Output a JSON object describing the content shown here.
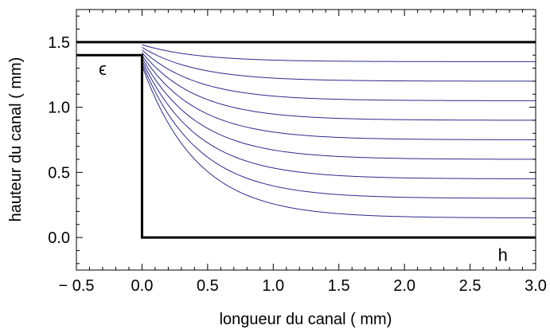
{
  "chart_data": {
    "type": "line",
    "xlabel": "longueur du canal ( mm)",
    "ylabel": "hauteur du canal ( mm)",
    "xlim": [
      -0.5,
      3.0
    ],
    "ylim": [
      -0.25,
      1.75
    ],
    "xticks": [
      {
        "value": -0.5,
        "label": "− 0.5"
      },
      {
        "value": 0.0,
        "label": "0.0"
      },
      {
        "value": 0.5,
        "label": "0.5"
      },
      {
        "value": 1.0,
        "label": "1.0"
      },
      {
        "value": 1.5,
        "label": "1.5"
      },
      {
        "value": 2.0,
        "label": "2.0"
      },
      {
        "value": 2.5,
        "label": "2.5"
      },
      {
        "value": 3.0,
        "label": "3.0"
      }
    ],
    "yticks": [
      {
        "value": 0.0,
        "label": "0.0"
      },
      {
        "value": 0.5,
        "label": "0.5"
      },
      {
        "value": 1.0,
        "label": "1.0"
      },
      {
        "value": 1.5,
        "label": "1.5"
      }
    ],
    "grid": false,
    "annotations": [
      {
        "text": "ϵ",
        "x": -0.3,
        "y": 1.25
      },
      {
        "text": "h",
        "x": 2.75,
        "y": -0.18
      }
    ],
    "boundaries": {
      "color": "#000000",
      "lines": [
        {
          "name": "top-wall",
          "points": [
            [
              -0.5,
              1.5
            ],
            [
              3.0,
              1.5
            ]
          ]
        },
        {
          "name": "step-wall",
          "points": [
            [
              -0.5,
              1.4
            ],
            [
              0.0,
              1.4
            ],
            [
              0.0,
              0.0
            ],
            [
              3.0,
              0.0
            ]
          ]
        }
      ]
    },
    "streamlines": {
      "color": "#2b2b8c",
      "x_start": 0.0,
      "x_end": 3.0,
      "series": [
        {
          "y_start": 1.48,
          "y_end": 1.35
        },
        {
          "y_start": 1.46,
          "y_end": 1.2
        },
        {
          "y_start": 1.44,
          "y_end": 1.05
        },
        {
          "y_start": 1.42,
          "y_end": 0.9
        },
        {
          "y_start": 1.4,
          "y_end": 0.75
        },
        {
          "y_start": 1.38,
          "y_end": 0.6
        },
        {
          "y_start": 1.36,
          "y_end": 0.45
        },
        {
          "y_start": 1.34,
          "y_end": 0.3
        },
        {
          "y_start": 1.32,
          "y_end": 0.15
        }
      ]
    }
  }
}
